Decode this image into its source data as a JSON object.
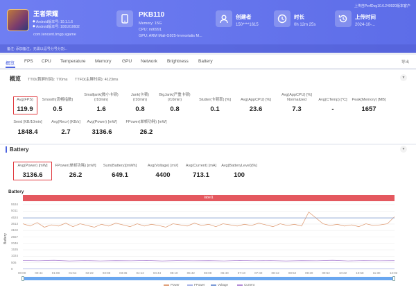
{
  "header": {
    "version": "上传自PerfDog10.6.240920版本客户",
    "app": {
      "name": "王者荣耀",
      "lines": [
        "Android版本号: 10.1.1.6",
        "Android版本号: 1001010602"
      ],
      "package": "com.tencent.tmgp.sgame"
    },
    "device": {
      "title": "PKB110",
      "lines": [
        "Memory: 15G",
        "CPU: mt6991",
        "GPU: ARM Mali-G925-Immortalis M..."
      ]
    },
    "creator": {
      "label": "创建者",
      "value": "150****1615"
    },
    "duration": {
      "label": "时长",
      "value": "0h 12m 25s"
    },
    "upload": {
      "label": "上传时间",
      "value": "2024-10-..."
    },
    "note": "备注: 添加备注，无需以逗号分号分割..."
  },
  "tabs": [
    "概览",
    "FPS",
    "CPU",
    "Temperature",
    "Memory",
    "GPU",
    "Network",
    "Brightness",
    "Battery"
  ],
  "export_label": "导出",
  "overview": {
    "title": "概览",
    "subtitle_a": "TTID(首屏时间): 770ms",
    "subtitle_b": "TTFD(主屏时间): 4123ms",
    "row1": [
      {
        "label": "Avg(FPS)",
        "value": "119.9"
      },
      {
        "label": "Smooth(流畅指数)",
        "value": "0.5"
      },
      {
        "label": "Smalljank(微小卡顿)\n(/10min)",
        "value": "1.6"
      },
      {
        "label": "Jank(卡顿)\n(/10min)",
        "value": "0.8"
      },
      {
        "label": "BigJank(严重卡顿)\n(/10min)",
        "value": "0.8"
      },
      {
        "label": "Stutter(卡顿率) [%]",
        "value": "0.1"
      },
      {
        "label": "Avg(AppCPU) [%]",
        "value": "23.6"
      },
      {
        "label": "Avg(AppCPU) [%]\nNormalized",
        "value": "7.3"
      },
      {
        "label": "Avg(CTemp) [°C]",
        "value": "-"
      },
      {
        "label": "Peak(Memory) [MB]",
        "value": "1657"
      }
    ],
    "row2": [
      {
        "label": "Send [KB/10min]",
        "value": "1848.4"
      },
      {
        "label": "Avg(Recv) [KB/s]",
        "value": "2.7"
      },
      {
        "label": "Avg(Power) [mW]",
        "value": "3136.6"
      },
      {
        "label": "FPower(单帧功耗) [mW]",
        "value": "26.2"
      }
    ]
  },
  "battery": {
    "title": "Battery",
    "metrics": [
      {
        "label": "Avg(Power) [mW]",
        "value": "3136.6"
      },
      {
        "label": "FPower(单帧功耗) [mW]",
        "value": "26.2"
      },
      {
        "label": "Sum(Battery)[mWh]",
        "value": "649.1"
      },
      {
        "label": "Avg(Voltage) [mV]",
        "value": "4400"
      },
      {
        "label": "Avg(Current) [mA]",
        "value": "713.1"
      },
      {
        "label": "Avg(BatteryLevel)[%]",
        "value": "100"
      }
    ],
    "chart_title": "Battery",
    "label_bar": "label1"
  },
  "chart_data": {
    "type": "line",
    "ylabel": "Battery",
    "yticks": [
      "5534",
      "5011",
      "4624",
      "3613",
      "3102",
      "2557",
      "2046",
      "1535",
      "1024",
      "506",
      "0"
    ],
    "ylim": [
      0,
      5534
    ],
    "xticks": [
      "00:00",
      "00:44",
      "01:08",
      "01:54",
      "02:22",
      "03:08",
      "03:36",
      "04:12",
      "04:44",
      "05:10",
      "05:42",
      "06:08",
      "06:40",
      "07:10",
      "07:40",
      "08:12",
      "08:52",
      "09:20",
      "09:52",
      "10:22",
      "10:58",
      "11:30",
      "12:02"
    ],
    "series": [
      {
        "name": "Power",
        "color": "#e0a07a",
        "values": [
          3900,
          3700,
          4000,
          3600,
          3800,
          3700,
          3950,
          3650,
          3900,
          3750,
          3600,
          3850,
          3700,
          3950,
          3800,
          3650,
          3900,
          3700,
          3850,
          3750,
          3600,
          3900,
          3800,
          3700,
          3950,
          3750,
          3850,
          3650,
          3900,
          3800,
          3700,
          3850,
          3750,
          3950,
          3800,
          3650,
          3900,
          3750,
          3850,
          3700,
          4900,
          4400,
          3900,
          3750,
          3850,
          3700,
          3800,
          3650,
          3900,
          3750,
          3800,
          3900,
          4500
        ]
      },
      {
        "name": "FPower",
        "color": "#a9b4e8",
        "values": [
          26,
          26,
          26,
          26,
          26,
          26,
          26,
          26,
          26,
          26,
          26,
          26,
          26,
          26,
          26,
          26,
          26,
          26,
          26,
          26,
          26,
          26,
          26
        ]
      },
      {
        "name": "Voltage",
        "color": "#7a9ad6",
        "values": [
          4400,
          4400,
          4400,
          4400,
          4400,
          4400,
          4400,
          4400,
          4400,
          4400,
          4400,
          4400,
          4400,
          4400,
          4400,
          4400,
          4400,
          4400,
          4400,
          4400,
          4400,
          4400,
          4400
        ]
      },
      {
        "name": "Current",
        "color": "#b38bd6",
        "values": [
          750,
          720,
          760,
          700,
          740,
          710,
          730,
          720,
          750,
          700,
          740,
          720,
          730,
          710,
          750,
          720,
          740,
          700,
          730,
          720,
          760,
          710,
          740,
          720,
          730
        ]
      }
    ],
    "legend": "bottom-center",
    "grid": true
  }
}
